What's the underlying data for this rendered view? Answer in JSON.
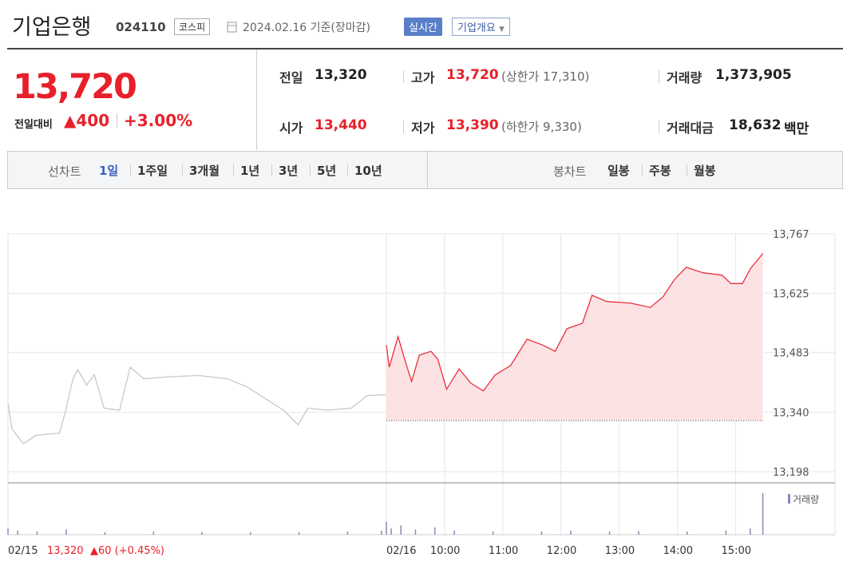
{
  "header": {
    "title": "기업은행",
    "code": "024110",
    "market": "코스피",
    "date": "2024.02.16 기준(장마감)",
    "realtime": "실시간",
    "company_info": "기업개요"
  },
  "quote": {
    "price": "13,720",
    "change_label": "전일대비",
    "change": "▲400",
    "rate": "+3.00%",
    "fields": [
      {
        "label": "전일",
        "value": "13,320"
      },
      {
        "label": "고가",
        "value": "13,720",
        "extra": "(상한가 17,310)"
      },
      {
        "label": "거래량",
        "value": "1,373,905"
      },
      {
        "label": "시가",
        "value": "13,440"
      },
      {
        "label": "저가",
        "value": "13,390",
        "extra": "(하한가 9,330)"
      },
      {
        "label": "거래대금",
        "value": "18,632",
        "unit": "백만"
      }
    ]
  },
  "tabs": {
    "line_label": "선차트",
    "line": [
      "1일",
      "1주일",
      "3개월",
      "1년",
      "3년",
      "5년",
      "10년"
    ],
    "candle_label": "봉차트",
    "candle": [
      "일봉",
      "주봉",
      "월봉"
    ]
  },
  "chart_data": [
    {
      "type": "line",
      "xlim": [
        0,
        780
      ],
      "ylim": [
        13198,
        13767
      ],
      "xticks": [
        {
          "value": 0,
          "label": "02/15"
        },
        {
          "value": 390,
          "label": "02/16"
        },
        {
          "value": 450,
          "label": "10:00"
        },
        {
          "value": 510,
          "label": "11:00"
        },
        {
          "value": 570,
          "label": "12:00"
        },
        {
          "value": 630,
          "label": "13:00"
        },
        {
          "value": 690,
          "label": "14:00"
        },
        {
          "value": 750,
          "label": "15:00"
        }
      ],
      "yticks": [
        {
          "value": 13198,
          "label": "13,198"
        },
        {
          "value": 13340,
          "label": "13,340"
        },
        {
          "value": 13483,
          "label": "13,483"
        },
        {
          "value": 13625,
          "label": "13,625"
        },
        {
          "value": 13767,
          "label": "13,767"
        }
      ],
      "grid": true,
      "baseline": 13320,
      "annotation": {
        "price": "13,320",
        "change": "▲60 (+0.45%)"
      },
      "series": [
        {
          "color": "#c8c8c8",
          "x": [
            0,
            4,
            16,
            29,
            53,
            59,
            67,
            72,
            81,
            89,
            99,
            115,
            126,
            140,
            165,
            197,
            226,
            247,
            267,
            284,
            299,
            309,
            329,
            354,
            370,
            389
          ],
          "values": [
            13362,
            13300,
            13265,
            13285,
            13290,
            13340,
            13420,
            13442,
            13405,
            13430,
            13350,
            13345,
            13448,
            13420,
            13425,
            13428,
            13420,
            13400,
            13370,
            13345,
            13310,
            13350,
            13345,
            13350,
            13380,
            13382
          ]
        },
        {
          "color": "#e8303a",
          "fill": "#fde2e4",
          "x": [
            390,
            393,
            402,
            410,
            416,
            424,
            436,
            443,
            452,
            465,
            477,
            490,
            502,
            518,
            535,
            551,
            564,
            576,
            592,
            602,
            617,
            642,
            662,
            675,
            687,
            699,
            716,
            736,
            745,
            757,
            765,
            778
          ],
          "values": [
            13501,
            13448,
            13521,
            13458,
            13414,
            13477,
            13486,
            13467,
            13395,
            13444,
            13410,
            13391,
            13429,
            13452,
            13515,
            13501,
            13486,
            13540,
            13553,
            13620,
            13605,
            13601,
            13591,
            13616,
            13658,
            13687,
            13674,
            13668,
            13648,
            13648,
            13683,
            13720
          ]
        }
      ]
    },
    {
      "type": "bar",
      "legend": "거래량",
      "color": "#8f87b8",
      "ylim": [
        0,
        100
      ],
      "xlim": [
        0,
        780
      ],
      "x": [
        0,
        10,
        30,
        60,
        100,
        150,
        200,
        250,
        300,
        350,
        385,
        390,
        395,
        405,
        420,
        440,
        460,
        500,
        550,
        580,
        620,
        650,
        700,
        740,
        765,
        778
      ],
      "values": [
        12,
        8,
        6,
        10,
        5,
        6,
        5,
        5,
        5,
        6,
        8,
        25,
        12,
        18,
        10,
        14,
        8,
        6,
        6,
        8,
        6,
        7,
        6,
        8,
        12,
        80
      ]
    }
  ]
}
